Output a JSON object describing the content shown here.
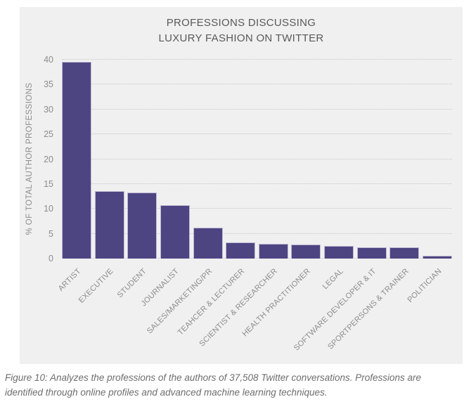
{
  "title": {
    "line1": "PROFESSIONS DISCUSSING",
    "line2": "LUXURY FASHION ON TWITTER"
  },
  "caption": "Figure 10: Analyzes the professions of the authors of 37,508 Twitter conversations. Professions are identified through online profiles and advanced machine learning techniques.",
  "chart_data": {
    "type": "bar",
    "title": "PROFESSIONS DISCUSSING LUXURY FASHION ON TWITTER",
    "xlabel": "",
    "ylabel": "% OF TOTAL AUTHOR PROFESSIONS",
    "categories": [
      "ARTIST",
      "EXECUTIVE",
      "STUDENT",
      "JOURNALIST",
      "SALES/MARKETING/PR",
      "TEAHCER & LECTURER",
      "SCIENTIST & RESEARCHER",
      "HEALTH PRACTITIONER",
      "LEGAL",
      "SOFTWARE DEVELOPER & IT",
      "SPORTPERSONS & TRAINER",
      "POLITICIAN"
    ],
    "values": [
      39.6,
      13.6,
      13.3,
      10.8,
      6.2,
      3.3,
      3.0,
      2.8,
      2.5,
      2.3,
      2.2,
      0.5
    ],
    "ylim": [
      0,
      40
    ],
    "yticks": [
      0,
      5,
      10,
      15,
      20,
      25,
      30,
      35,
      40
    ],
    "grid": "horizontal-dotted",
    "legend": "none"
  },
  "colors": {
    "bar": "#4d4582",
    "bar_border": "#bfb9d3",
    "panel_bg": "#f0f0f0",
    "grid": "#c6c6c6",
    "axis_text": "#8c8c8c",
    "title_text": "#595959",
    "caption_text": "#6e6e6e"
  }
}
